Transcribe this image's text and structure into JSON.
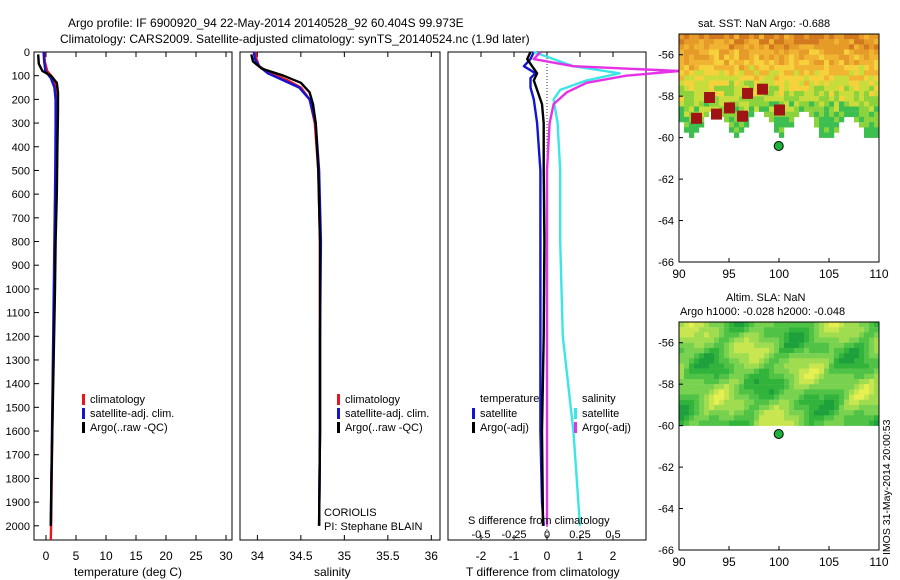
{
  "header": {
    "line1": "Argo profile: IF 6900920_94 22-May-2014 20140528_92 60.404S 99.973E",
    "line2": "Climatology: CARS2009. Satellite-adjusted climatology: synTS_20140524.nc (1.9d later)"
  },
  "colors": {
    "climatology": "#e8141e",
    "satellite": "#1414d2",
    "argo": "#000000",
    "sat_cyan": "#3ce6e6",
    "argo_magenta": "#e632e6"
  },
  "chart_data": [
    {
      "type": "line",
      "name": "temperature",
      "xlabel": "temperature (deg C)",
      "ylabel": "",
      "xlim": [
        -2,
        31
      ],
      "ylim": [
        2060,
        0
      ],
      "xticks": [
        0,
        5,
        10,
        15,
        20,
        25,
        30
      ],
      "yticks": [
        0,
        100,
        200,
        300,
        400,
        500,
        600,
        700,
        800,
        900,
        1000,
        1100,
        1200,
        1300,
        1400,
        1500,
        1600,
        1700,
        1800,
        1900,
        2000
      ],
      "legend": [
        "climatology",
        "satellite-adj. clim.",
        "Argo(..raw -QC)"
      ],
      "series": [
        {
          "name": "climatology",
          "depth": [
            0,
            40,
            80,
            110,
            150,
            200,
            300,
            500,
            800,
            1200,
            1600,
            2000,
            2060
          ],
          "values": [
            -0.3,
            -0.2,
            0.2,
            1.2,
            1.6,
            1.7,
            1.65,
            1.6,
            1.45,
            1.25,
            1.05,
            0.85,
            0.8
          ]
        },
        {
          "name": "satellite-adj. clim.",
          "depth": [
            0,
            40,
            80,
            110,
            150,
            200,
            300,
            500,
            800,
            1200,
            1600,
            2000
          ],
          "values": [
            -0.4,
            -0.3,
            -0.1,
            0.8,
            1.4,
            1.6,
            1.6,
            1.55,
            1.4,
            1.2,
            1.0,
            0.8
          ]
        },
        {
          "name": "Argo(..raw -QC)",
          "depth": [
            10,
            50,
            80,
            100,
            130,
            170,
            250,
            400,
            600,
            800,
            1000,
            1200,
            1400,
            1600,
            1800,
            2000
          ],
          "values": [
            -1.3,
            -1.2,
            -0.6,
            0.8,
            1.8,
            2.0,
            2.0,
            1.9,
            1.8,
            1.6,
            1.5,
            1.35,
            1.2,
            1.05,
            0.9,
            0.8
          ]
        }
      ]
    },
    {
      "type": "line",
      "name": "salinity",
      "xlabel": "salinity",
      "xlim": [
        33.8,
        36.1
      ],
      "ylim": [
        2060,
        0
      ],
      "xticks": [
        34,
        34.5,
        35,
        35.5,
        36
      ],
      "legend": [
        "climatology",
        "satellite-adj. clim.",
        "Argo(..raw -QC)"
      ],
      "annotation": [
        "CORIOLIS",
        "PI: Stephane BLAIN"
      ],
      "series": [
        {
          "name": "climatology",
          "depth": [
            0,
            30,
            60,
            90,
            120,
            150,
            200,
            300,
            500,
            800,
            1200,
            1600,
            2000
          ],
          "values": [
            33.98,
            33.99,
            34.02,
            34.15,
            34.35,
            34.5,
            34.6,
            34.66,
            34.7,
            34.72,
            34.72,
            34.72,
            34.71
          ]
        },
        {
          "name": "satellite-adj. clim.",
          "depth": [
            0,
            30,
            60,
            90,
            120,
            150,
            200,
            300,
            500,
            800,
            1200,
            1600,
            2000
          ],
          "values": [
            33.96,
            33.97,
            34.02,
            34.12,
            34.3,
            34.48,
            34.6,
            34.67,
            34.71,
            34.73,
            34.72,
            34.72,
            34.71
          ]
        },
        {
          "name": "Argo(..raw -QC)",
          "depth": [
            10,
            40,
            70,
            100,
            130,
            170,
            220,
            300,
            500,
            800,
            1200,
            1600,
            2000
          ],
          "values": [
            33.93,
            33.95,
            34.05,
            34.3,
            34.5,
            34.6,
            34.64,
            34.67,
            34.7,
            34.72,
            34.72,
            34.72,
            34.71
          ]
        }
      ]
    },
    {
      "type": "line",
      "name": "difference from climatology",
      "xlabel": "T difference from climatology",
      "xlabel_top": "S difference from climatology",
      "xlim": [
        -3,
        3
      ],
      "ylim": [
        2060,
        0
      ],
      "xticks": [
        -2,
        -1,
        0,
        1,
        2
      ],
      "xticks_top": [
        "-0.5",
        "-0.25",
        "0",
        "0.25",
        "0.5"
      ],
      "legend_titles": [
        "temperature",
        "salinity"
      ],
      "legend": [
        "satellite",
        "Argo(-adj)",
        "satellite",
        "Argo(-adj)"
      ],
      "series": [
        {
          "name": "temperature satellite",
          "depth": [
            0,
            30,
            60,
            90,
            110,
            150,
            200,
            300,
            500,
            800,
            1200,
            1600,
            1900,
            2000
          ],
          "values": [
            -0.4,
            -0.5,
            -0.7,
            -0.35,
            -0.5,
            -0.5,
            -0.4,
            -0.3,
            -0.2,
            -0.2,
            -0.2,
            -0.2,
            -0.15,
            -0.1
          ]
        },
        {
          "name": "temperature Argo(-adj)",
          "depth": [
            0,
            30,
            60,
            90,
            120,
            160,
            220,
            300,
            500,
            800,
            1200,
            1600,
            2000
          ],
          "values": [
            -0.5,
            -0.6,
            -0.45,
            -0.3,
            -0.4,
            -0.3,
            -0.15,
            -0.1,
            -0.1,
            -0.08,
            -0.1,
            -0.15,
            -0.12
          ]
        },
        {
          "name": "salinity satellite",
          "depth": [
            0,
            30,
            60,
            90,
            120,
            160,
            200,
            300,
            500,
            800,
            1200,
            1600,
            2000
          ],
          "values": [
            -0.1,
            0.05,
            0.2,
            0.55,
            0.3,
            0.1,
            0.05,
            0.08,
            0.1,
            0.1,
            0.12,
            0.2,
            0.25
          ]
        },
        {
          "name": "salinity Argo(-adj)",
          "depth": [
            0,
            30,
            60,
            80,
            100,
            130,
            170,
            220,
            300,
            500,
            800,
            1200,
            1600,
            2000
          ],
          "values": [
            -0.05,
            -0.1,
            0.2,
            1.0,
            0.6,
            0.3,
            0.15,
            0.05,
            0.02,
            0.0,
            0.0,
            0.0,
            0.0,
            0.0
          ]
        }
      ]
    },
    {
      "type": "heatmap",
      "name": "sat SST map",
      "title": "sat. SST: NaN Argo: -0.688",
      "xlim": [
        90,
        110
      ],
      "ylim": [
        -66,
        -55
      ],
      "xticks": [
        90,
        95,
        100,
        105,
        110
      ],
      "yticks": [
        -56,
        -58,
        -60,
        -62,
        -64,
        -66
      ],
      "argo_position": [
        99.973,
        -60.404
      ]
    },
    {
      "type": "heatmap",
      "name": "altimetry SLA map",
      "title": "Altim. SLA: NaN",
      "subtitle": "Argo h1000: -0.028 h2000: -0.048",
      "xlim": [
        90,
        110
      ],
      "ylim": [
        -66,
        -55
      ],
      "xticks": [
        90,
        95,
        100,
        105,
        110
      ],
      "yticks": [
        -56,
        -58,
        -60,
        -62,
        -64,
        -66
      ],
      "argo_position": [
        99.973,
        -60.404
      ]
    }
  ],
  "footer_stamp": "IMOS 31-May-2014 20:00:53"
}
